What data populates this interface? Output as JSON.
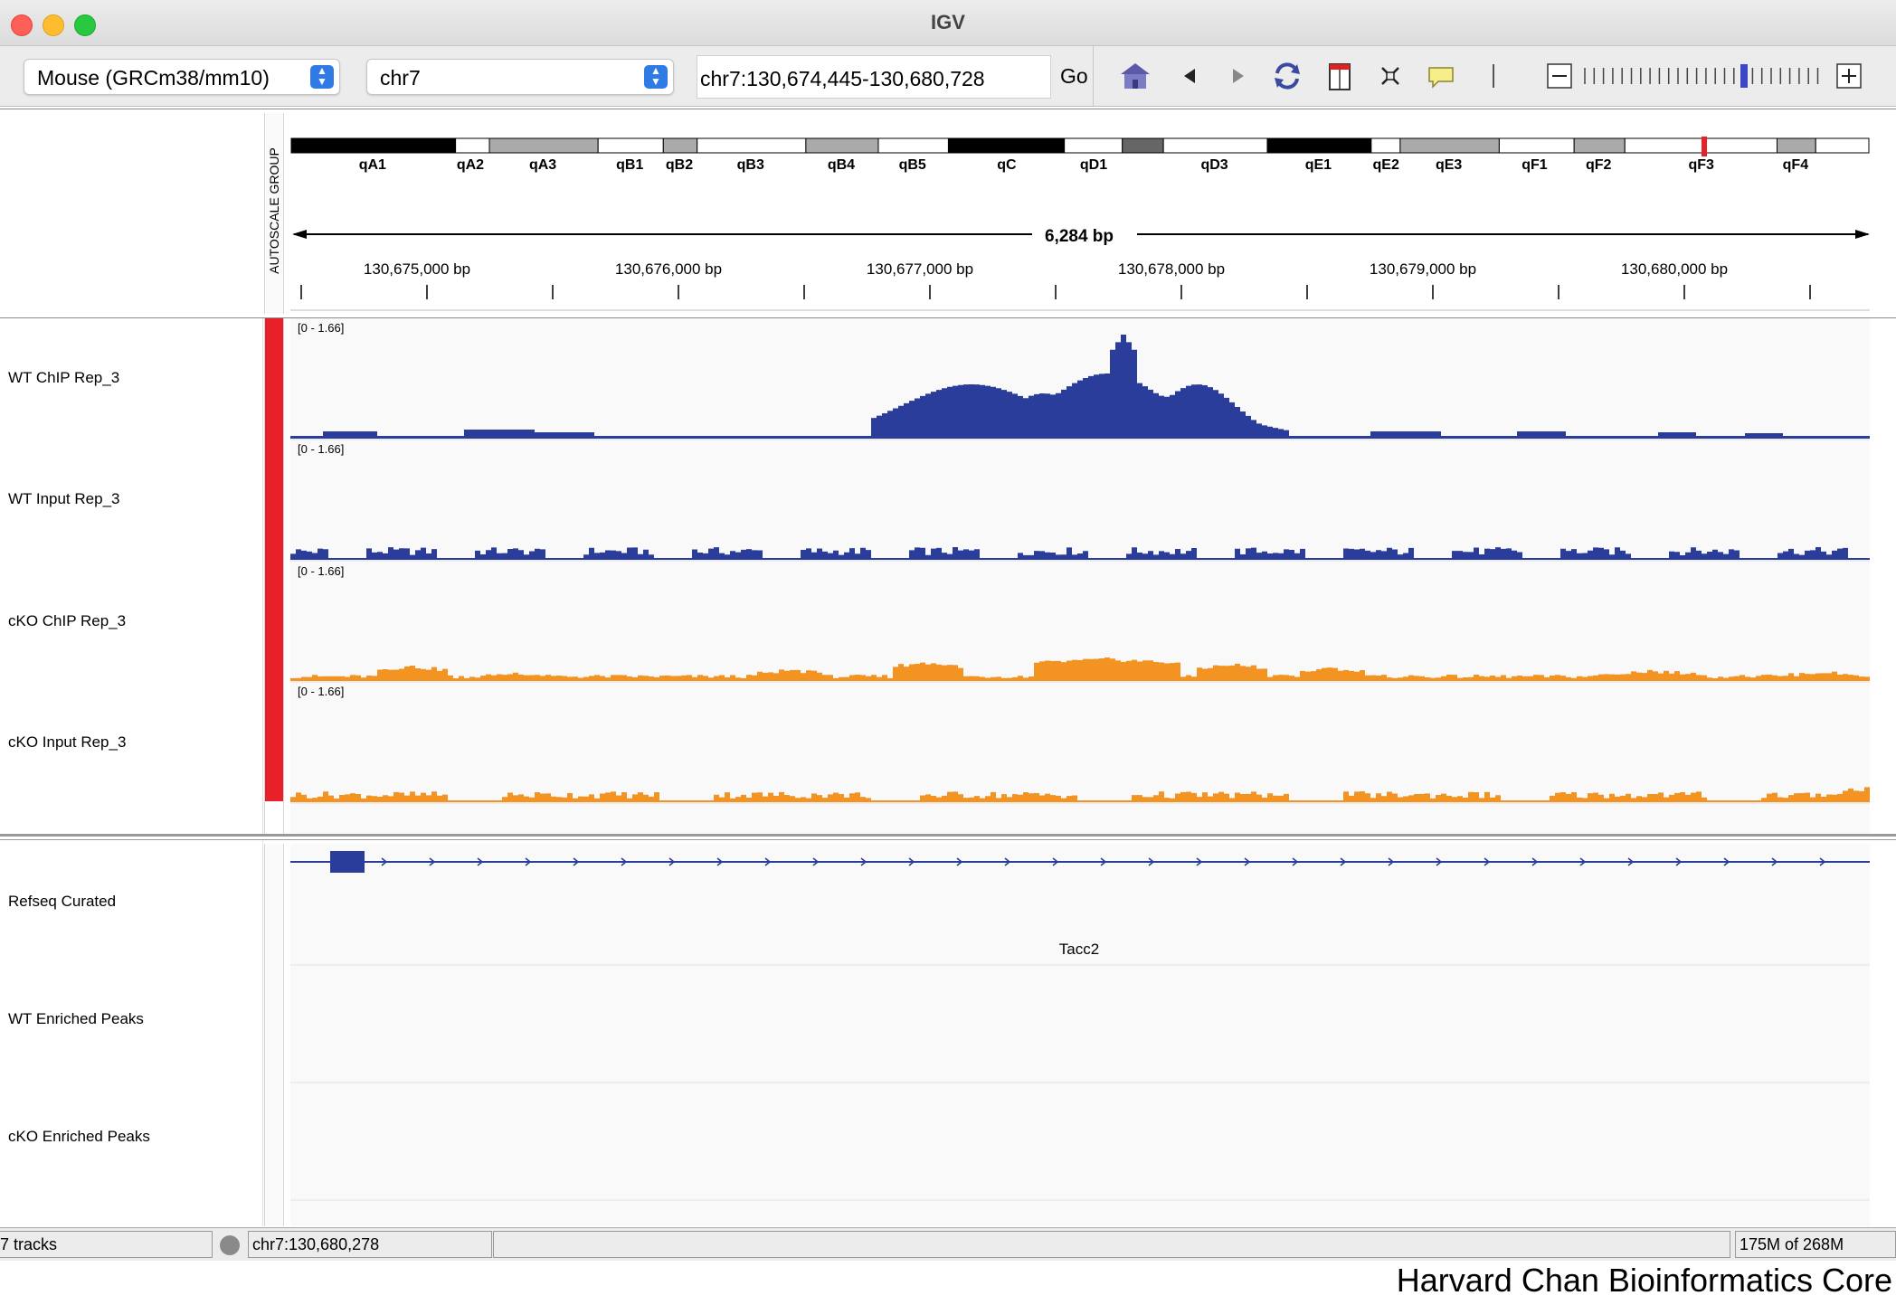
{
  "window": {
    "title": "IGV"
  },
  "toolbar": {
    "genome": "Mouse (GRCm38/mm10)",
    "chromosome": "chr7",
    "locus": "chr7:130,674,445-130,680,728",
    "go_label": "Go",
    "icons": [
      "home-icon",
      "back-icon",
      "forward-icon",
      "refresh-icon",
      "roi-icon",
      "fit-icon",
      "popup-info-icon",
      "divider",
      "zoom-out-icon",
      "zoom-slider",
      "zoom-in-icon"
    ]
  },
  "ideogram": {
    "bands": [
      "qA1",
      "qA2",
      "qA3",
      "qB1",
      "qB2",
      "qB3",
      "qB4",
      "qB5",
      "qC",
      "qD1",
      "qD3",
      "qE1",
      "qE2",
      "qE3",
      "qF1",
      "qF2",
      "qF3",
      "qF4"
    ],
    "span_label": "6,284 bp",
    "ticks": [
      "130,675,000 bp",
      "130,676,000 bp",
      "130,677,000 bp",
      "130,678,000 bp",
      "130,679,000 bp",
      "130,680,000 bp"
    ],
    "attribute_header": "AUTOSCALE GROUP"
  },
  "data_tracks": [
    {
      "name": "WT ChIP Rep_3",
      "range": "[0 - 1.66]",
      "color": "#2b3d9a"
    },
    {
      "name": "WT Input Rep_3",
      "range": "[0 - 1.66]",
      "color": "#2b3d9a"
    },
    {
      "name": "cKO ChIP Rep_3",
      "range": "[0 - 1.66]",
      "color": "#f39322"
    },
    {
      "name": "cKO Input Rep_3",
      "range": "[0 - 1.66]",
      "color": "#f39322"
    }
  ],
  "feature_tracks": [
    {
      "name": "Refseq Curated",
      "gene": "Tacc2"
    },
    {
      "name": "WT Enriched Peaks"
    },
    {
      "name": "cKO Enriched Peaks"
    }
  ],
  "status": {
    "tracks": "7 tracks",
    "position": "chr7:130,680,278",
    "memory": "175M of 268M"
  },
  "footer": "Harvard Chan Bioinformatics Core",
  "colors": {
    "attr_red": "#e8202a",
    "chip_blue": "#2b3d9a",
    "cko_orange": "#f39322"
  }
}
